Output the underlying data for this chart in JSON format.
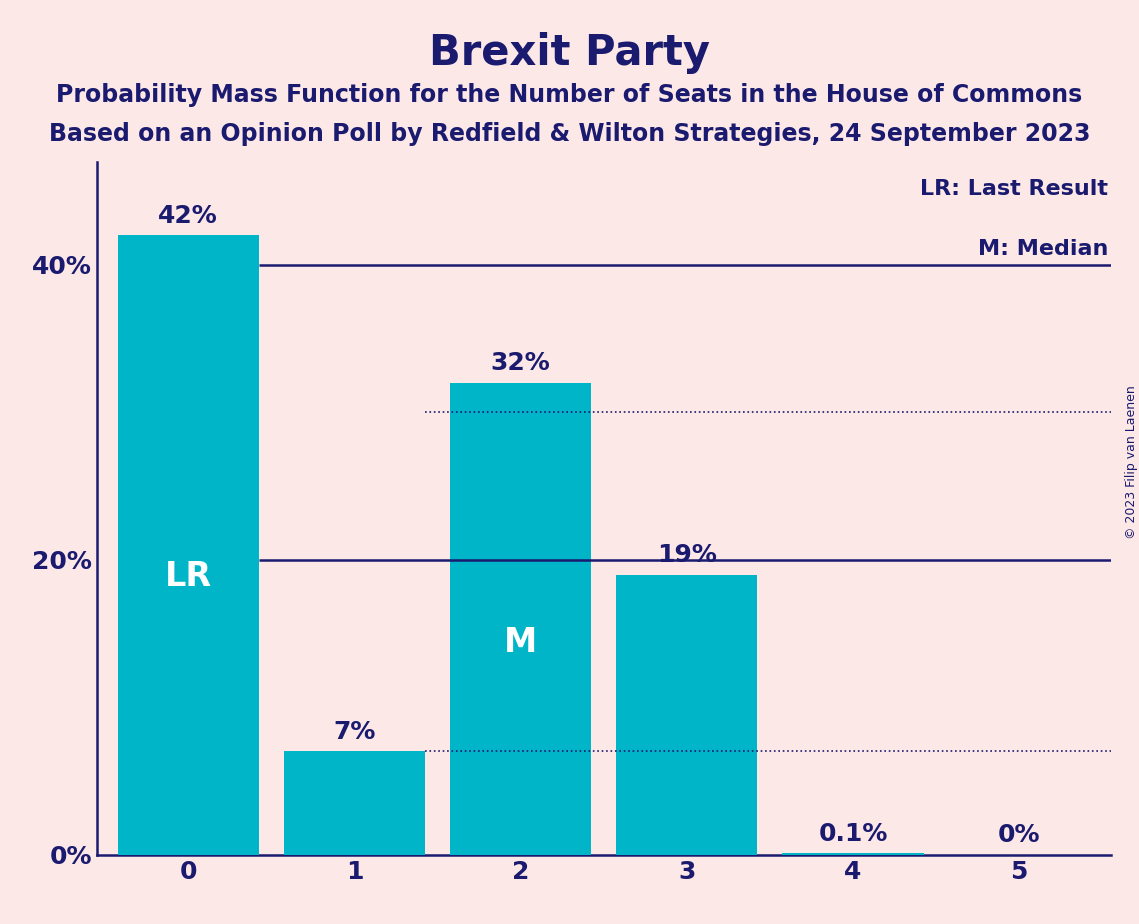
{
  "title": "Brexit Party",
  "subtitle1": "Probability Mass Function for the Number of Seats in the House of Commons",
  "subtitle2": "Based on an Opinion Poll by Redfield & Wilton Strategies, 24 September 2023",
  "copyright": "© 2023 Filip van Laenen",
  "categories": [
    0,
    1,
    2,
    3,
    4,
    5
  ],
  "values": [
    42,
    7,
    32,
    19,
    0.1,
    0
  ],
  "bar_color": "#00b5c8",
  "background_color": "#fde8e8",
  "title_color": "#1a1a6e",
  "bar_label_color_dark": "#1a1a6e",
  "bar_label_color_light": "#ffffff",
  "axis_color": "#1a1a6e",
  "hline_solid_y": 40,
  "hline_solid_xstart": 0.5,
  "hline_solid2_y": 20,
  "hline_solid2_xstart": 0.5,
  "hline_dotted1_y": 30,
  "hline_dotted1_xstart": 1.5,
  "hline_dotted2_y": 7,
  "hline_dotted2_xstart": 1.5,
  "hline_color": "#1a1a6e",
  "lr_bar_index": 0,
  "median_bar_index": 2,
  "ylabel_ticks": [
    0,
    20,
    40
  ],
  "ylim": [
    0,
    47
  ],
  "xlim_left": -0.55,
  "xlim_right": 5.55,
  "legend_text1": "LR: Last Result",
  "legend_text2": "M: Median",
  "title_fontsize": 30,
  "subtitle_fontsize": 17,
  "bar_label_fontsize": 18,
  "tick_fontsize": 18,
  "legend_fontsize": 16,
  "lr_label_fontsize": 24,
  "median_label_fontsize": 24,
  "copyright_fontsize": 9
}
